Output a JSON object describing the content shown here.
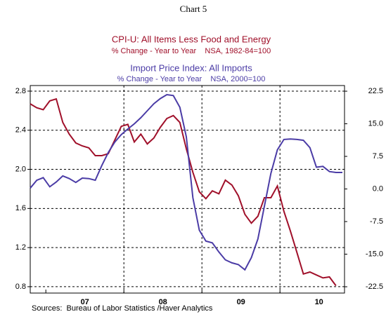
{
  "chart_data": {
    "type": "line",
    "title": "Chart 5",
    "source": "Sources:  Bureau of Labor Statistics /Haver Analytics",
    "categories": [
      null,
      null,
      null,
      null,
      null,
      null,
      null,
      null,
      "07",
      null,
      null,
      null,
      null,
      null,
      null,
      null,
      null,
      null,
      null,
      null,
      "08",
      null,
      null,
      null,
      null,
      null,
      null,
      null,
      null,
      null,
      null,
      null,
      "09",
      null,
      null,
      null,
      null,
      null,
      null,
      null,
      null,
      null,
      null,
      null,
      "10",
      null,
      null,
      null,
      null
    ],
    "series": [
      {
        "name": "CPI-U: All Items Less Food and Energy",
        "subtitle": "% Change - Year to Year    NSA, 1982-84=100",
        "color": "#a0102a",
        "axis": "y",
        "values": [
          2.67,
          2.63,
          2.61,
          2.7,
          2.72,
          2.48,
          2.36,
          2.27,
          2.24,
          2.22,
          2.14,
          2.14,
          2.16,
          2.3,
          2.44,
          2.46,
          2.28,
          2.36,
          2.26,
          2.32,
          2.43,
          2.52,
          2.55,
          2.48,
          2.21,
          1.97,
          1.77,
          1.7,
          1.78,
          1.75,
          1.89,
          1.84,
          1.73,
          1.54,
          1.45,
          1.52,
          1.71,
          1.71,
          1.83,
          1.57,
          1.37,
          1.15,
          0.93,
          0.95,
          0.92,
          0.89,
          0.9,
          0.81,
          null
        ]
      },
      {
        "name": "Import Price Index: All Imports",
        "subtitle": "% Change - Year to Year    NSA, 2000=100",
        "color": "#4b3ca6",
        "axis": "y2",
        "values": [
          0.2,
          2.0,
          2.6,
          0.5,
          1.6,
          3.0,
          2.4,
          1.5,
          2.5,
          2.4,
          2.0,
          5.4,
          8.4,
          10.8,
          12.5,
          13.8,
          15.0,
          16.4,
          18.0,
          19.6,
          20.8,
          21.7,
          21.5,
          18.8,
          12.0,
          -2.0,
          -9.5,
          -12.0,
          -12.4,
          -14.5,
          -16.3,
          -17.0,
          -17.4,
          -18.6,
          -15.8,
          -11.5,
          -4.0,
          3.6,
          9.0,
          11.4,
          11.5,
          11.4,
          11.2,
          9.5,
          5.0,
          5.2,
          4.0,
          3.8,
          3.8
        ]
      }
    ],
    "ylim": [
      0.735,
      2.857
    ],
    "yticks": [
      {
        "value": 0.8,
        "label": "0.8"
      },
      1.2,
      1.6,
      {
        "value": 2.0,
        "label": "2.0"
      },
      2.4,
      2.8
    ],
    "y2lim": [
      -23.95,
      23.8
    ],
    "y2ticks": [
      -22.5,
      {
        "value": -15,
        "label": "-15.0"
      },
      -7.5,
      {
        "value": 0,
        "label": "0.0"
      },
      7.5,
      {
        "value": 15,
        "label": "15.0"
      },
      22.5
    ],
    "grid": true
  }
}
